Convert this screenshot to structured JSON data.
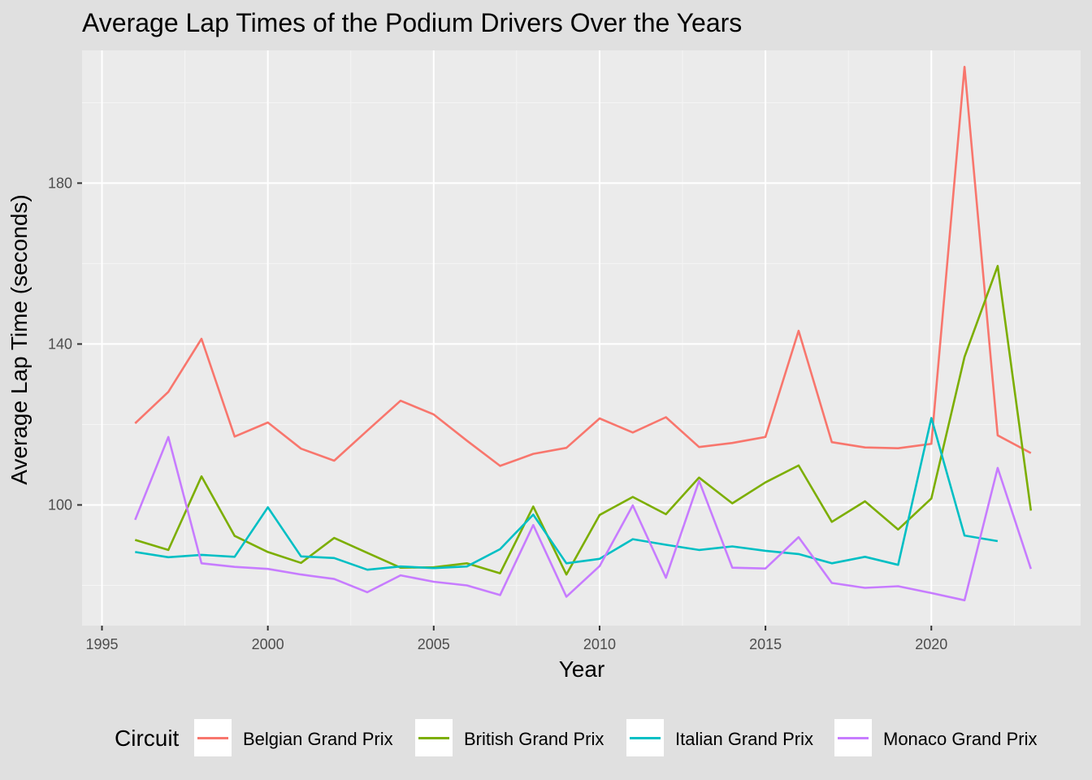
{
  "chart_data": {
    "type": "line",
    "title": "Average Lap Times of the Podium Drivers Over the Years",
    "xlabel": "Year",
    "ylabel": "Average Lap Time (seconds)",
    "xlim": [
      1994.4,
      2024.5
    ],
    "ylim": [
      70,
      213
    ],
    "x_ticks": [
      1995,
      2000,
      2005,
      2010,
      2015,
      2020
    ],
    "y_ticks": [
      100,
      140,
      180
    ],
    "grid": true,
    "legend": {
      "title": "Circuit",
      "position": "bottom"
    },
    "x": [
      1996,
      1997,
      1998,
      1999,
      2000,
      2001,
      2002,
      2003,
      2004,
      2005,
      2006,
      2007,
      2008,
      2009,
      2010,
      2011,
      2012,
      2013,
      2014,
      2015,
      2016,
      2017,
      2018,
      2019,
      2020,
      2021,
      2022,
      2023
    ],
    "series": [
      {
        "name": "Belgian Grand Prix",
        "color": "#F8766D",
        "values": [
          120.3,
          128.1,
          141.3,
          117.0,
          120.5,
          114.0,
          111.0,
          118.5,
          125.9,
          122.5,
          116.0,
          109.7,
          112.7,
          114.2,
          121.5,
          118.0,
          121.8,
          114.4,
          115.4,
          116.9,
          143.3,
          115.6,
          114.3,
          114.1,
          115.2,
          208.9,
          117.3,
          112.9
        ]
      },
      {
        "name": "British Grand Prix",
        "color": "#7CAE00",
        "values": [
          91.3,
          88.8,
          107.1,
          92.3,
          88.3,
          85.6,
          91.8,
          88.1,
          84.4,
          84.5,
          85.5,
          83.0,
          99.6,
          82.7,
          97.5,
          102.0,
          97.7,
          106.8,
          100.4,
          105.6,
          109.8,
          95.8,
          100.9,
          93.9,
          101.6,
          136.8,
          159.4,
          98.6
        ]
      },
      {
        "name": "Italian Grand Prix",
        "color": "#00BFC4",
        "values": [
          88.3,
          87.0,
          87.6,
          87.1,
          99.4,
          87.2,
          86.8,
          83.9,
          84.7,
          84.3,
          84.7,
          89.0,
          97.6,
          85.5,
          86.6,
          91.5,
          90.1,
          88.8,
          89.7,
          88.6,
          87.8,
          85.5,
          87.1,
          85.1,
          121.6,
          92.4,
          91.0,
          null
        ]
      },
      {
        "name": "Monaco Grand Prix",
        "color": "#C77CFF",
        "values": [
          96.3,
          116.9,
          85.5,
          84.6,
          84.1,
          82.7,
          81.6,
          78.3,
          82.5,
          80.9,
          80.0,
          77.6,
          95.0,
          77.2,
          84.8,
          99.9,
          81.9,
          106.0,
          84.4,
          84.2,
          92.0,
          80.6,
          79.4,
          79.8,
          78.1,
          76.3,
          109.2,
          84.1
        ]
      }
    ]
  }
}
